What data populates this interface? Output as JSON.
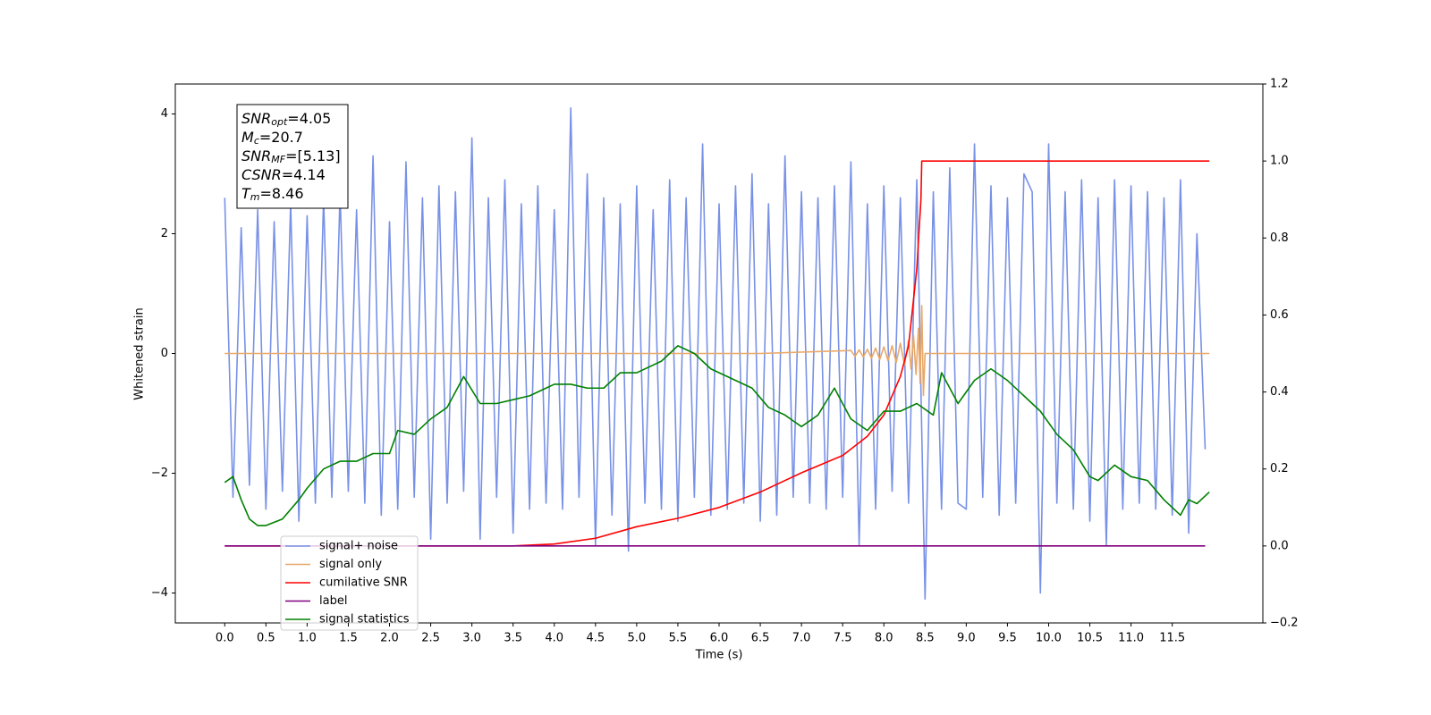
{
  "chart_data": {
    "type": "line",
    "y_label": "Whitened strain",
    "x_label": "Time (s)",
    "xlim": [
      -0.6,
      12.6
    ],
    "ylim": [
      -4.5,
      4.5
    ],
    "y2lim": [
      -0.2,
      1.2
    ],
    "xticks": [
      {
        "value": 0,
        "label": "0.0"
      },
      0.5,
      {
        "value": 1,
        "label": "1.0"
      },
      1.5,
      {
        "value": 2,
        "label": "2.0"
      },
      2.5,
      {
        "value": 3,
        "label": "3.0"
      },
      3.5,
      {
        "value": 4,
        "label": "4.0"
      },
      4.5,
      {
        "value": 5,
        "label": "5.0"
      },
      5.5,
      {
        "value": 6,
        "label": "6.0"
      },
      6.5,
      {
        "value": 7,
        "label": "7.0"
      },
      7.5,
      {
        "value": 8,
        "label": "8.0"
      },
      8.5,
      {
        "value": 9,
        "label": "9.0"
      },
      9.5,
      {
        "value": 10,
        "label": "10.0"
      },
      10.5,
      {
        "value": 11,
        "label": "11.0"
      },
      11.5
    ],
    "yticks": [
      {
        "value": -4,
        "label": "−4"
      },
      {
        "value": -2,
        "label": "−2"
      },
      0,
      2,
      4
    ],
    "y2ticks": [
      {
        "value": -0.2,
        "label": "−0.2"
      },
      {
        "value": 0,
        "label": "0.0"
      },
      0.2,
      0.4,
      0.6,
      0.8,
      {
        "value": 1,
        "label": "1.0"
      },
      1.2
    ],
    "annotation": [
      {
        "symbol": "SNR",
        "subscript": "opt",
        "text": "=4.05"
      },
      {
        "symbol": "M",
        "subscript": "c",
        "text": "=20.7"
      },
      {
        "symbol": "SNR",
        "subscript": "MF",
        "text": "=[5.13]"
      },
      {
        "symbol": "CSNR",
        "subscript": "",
        "text": "=4.14"
      },
      {
        "symbol": "T",
        "subscript": "m",
        "text": "=8.46"
      }
    ],
    "series": [
      {
        "name": "signal+ noise",
        "color": "#7891e6",
        "axis": "y",
        "x": [
          0.0,
          0.1,
          0.2,
          0.3,
          0.4,
          0.5,
          0.6,
          0.7,
          0.8,
          0.9,
          1.0,
          1.1,
          1.2,
          1.3,
          1.4,
          1.5,
          1.6,
          1.7,
          1.8,
          1.9,
          2.0,
          2.1,
          2.2,
          2.3,
          2.4,
          2.5,
          2.6,
          2.7,
          2.8,
          2.9,
          3.0,
          3.1,
          3.2,
          3.3,
          3.4,
          3.5,
          3.6,
          3.7,
          3.8,
          3.9,
          4.0,
          4.1,
          4.2,
          4.3,
          4.4,
          4.5,
          4.6,
          4.7,
          4.8,
          4.9,
          5.0,
          5.1,
          5.2,
          5.3,
          5.4,
          5.5,
          5.6,
          5.7,
          5.8,
          5.9,
          6.0,
          6.1,
          6.2,
          6.3,
          6.4,
          6.5,
          6.6,
          6.7,
          6.8,
          6.9,
          7.0,
          7.1,
          7.2,
          7.3,
          7.4,
          7.5,
          7.6,
          7.7,
          7.8,
          7.9,
          8.0,
          8.1,
          8.2,
          8.3,
          8.4,
          8.5,
          8.6,
          8.7,
          8.8,
          8.9,
          9.0,
          9.1,
          9.2,
          9.3,
          9.4,
          9.5,
          9.6,
          9.7,
          9.8,
          9.9,
          10.0,
          10.1,
          10.2,
          10.3,
          10.4,
          10.5,
          10.6,
          10.7,
          10.8,
          10.9,
          11.0,
          11.1,
          11.2,
          11.3,
          11.4,
          11.5,
          11.6,
          11.7,
          11.8,
          11.9
        ],
        "values": [
          2.6,
          -2.4,
          2.1,
          -2.2,
          2.4,
          -2.6,
          2.2,
          -2.3,
          2.5,
          -2.8,
          2.3,
          -2.5,
          2.6,
          -2.4,
          2.7,
          -2.3,
          2.4,
          -2.5,
          3.3,
          -2.7,
          2.2,
          -2.6,
          3.2,
          -2.4,
          2.6,
          -3.1,
          2.8,
          -2.5,
          2.7,
          -2.3,
          3.6,
          -3.1,
          2.6,
          -2.4,
          2.9,
          -3.0,
          2.5,
          -2.6,
          2.8,
          -2.5,
          2.4,
          -2.6,
          4.1,
          -2.4,
          3.0,
          -3.2,
          2.6,
          -2.7,
          2.5,
          -3.3,
          2.8,
          -2.5,
          2.4,
          -2.6,
          2.9,
          -2.8,
          2.6,
          -2.4,
          3.5,
          -2.7,
          2.5,
          -2.6,
          2.8,
          -2.5,
          3.0,
          -2.8,
          2.5,
          -2.7,
          3.3,
          -2.4,
          2.7,
          -2.5,
          2.6,
          -2.6,
          2.8,
          -2.4,
          3.2,
          -3.2,
          2.5,
          -2.6,
          2.8,
          -2.3,
          2.6,
          -2.5,
          2.9,
          -4.1,
          2.7,
          -2.6,
          3.1,
          -2.5,
          -2.6,
          3.5,
          -2.4,
          2.8,
          -2.7,
          2.6,
          -2.5,
          3.0,
          2.7,
          -4.0,
          3.5,
          -2.5,
          2.7,
          -2.6,
          2.9,
          -2.8,
          2.6,
          -3.2,
          2.9,
          -2.6,
          2.8,
          -2.5,
          2.7,
          -2.6,
          2.6,
          -2.7,
          2.9,
          -3.0,
          2.0,
          -1.6
        ]
      },
      {
        "name": "signal only",
        "color": "#e8a86a",
        "axis": "y",
        "x": [
          0,
          6.5,
          7.6,
          7.65,
          7.7,
          7.75,
          7.8,
          7.85,
          7.9,
          7.95,
          8.0,
          8.05,
          8.1,
          8.15,
          8.2,
          8.25,
          8.3,
          8.33,
          8.36,
          8.39,
          8.42,
          8.44,
          8.46,
          8.48,
          8.5,
          11.95
        ],
        "values": [
          0,
          0,
          0.05,
          -0.05,
          0.06,
          -0.06,
          0.07,
          -0.08,
          0.09,
          -0.1,
          0.11,
          -0.12,
          0.13,
          -0.15,
          0.17,
          -0.19,
          0.22,
          -0.26,
          0.3,
          -0.35,
          0.42,
          -0.5,
          0.8,
          -0.7,
          0,
          0
        ]
      },
      {
        "name": "cumilative SNR",
        "color": "#ff0000",
        "axis": "y2",
        "x": [
          0,
          3.5,
          4.0,
          4.5,
          5.0,
          5.5,
          6.0,
          6.5,
          7.0,
          7.5,
          7.8,
          8.0,
          8.2,
          8.3,
          8.4,
          8.45,
          8.46,
          8.5,
          11.95
        ],
        "values": [
          0,
          0,
          0.005,
          0.02,
          0.05,
          0.072,
          0.1,
          0.14,
          0.19,
          0.235,
          0.285,
          0.34,
          0.44,
          0.52,
          0.72,
          0.9,
          1.0,
          1.0,
          1.0
        ]
      },
      {
        "name": "label",
        "color": "#800080",
        "axis": "y2",
        "x": [
          0,
          11.9
        ],
        "values": [
          0,
          0
        ]
      },
      {
        "name": "signal statistics",
        "color": "#008000",
        "axis": "y2",
        "x": [
          0.0,
          0.1,
          0.2,
          0.3,
          0.4,
          0.5,
          0.7,
          0.9,
          1.0,
          1.2,
          1.4,
          1.6,
          1.8,
          2.0,
          2.1,
          2.3,
          2.5,
          2.7,
          2.9,
          3.1,
          3.3,
          3.5,
          3.7,
          3.9,
          4.0,
          4.2,
          4.4,
          4.6,
          4.8,
          5.0,
          5.3,
          5.5,
          5.7,
          5.9,
          6.2,
          6.4,
          6.6,
          6.8,
          7.0,
          7.2,
          7.4,
          7.6,
          7.8,
          8.0,
          8.2,
          8.4,
          8.6,
          8.7,
          8.9,
          9.1,
          9.3,
          9.5,
          9.7,
          9.9,
          10.1,
          10.3,
          10.5,
          10.6,
          10.8,
          11.0,
          11.2,
          11.4,
          11.6,
          11.7,
          11.8,
          11.95
        ],
        "values": [
          0.165,
          0.18,
          0.12,
          0.07,
          0.053,
          0.053,
          0.07,
          0.12,
          0.15,
          0.2,
          0.22,
          0.22,
          0.24,
          0.24,
          0.3,
          0.29,
          0.33,
          0.36,
          0.44,
          0.37,
          0.37,
          0.38,
          0.39,
          0.41,
          0.42,
          0.42,
          0.41,
          0.41,
          0.45,
          0.45,
          0.48,
          0.52,
          0.5,
          0.46,
          0.43,
          0.41,
          0.36,
          0.34,
          0.31,
          0.34,
          0.41,
          0.33,
          0.3,
          0.35,
          0.35,
          0.37,
          0.34,
          0.45,
          0.37,
          0.43,
          0.46,
          0.43,
          0.39,
          0.35,
          0.29,
          0.25,
          0.18,
          0.17,
          0.21,
          0.18,
          0.17,
          0.12,
          0.08,
          0.12,
          0.11,
          0.14
        ]
      }
    ]
  }
}
